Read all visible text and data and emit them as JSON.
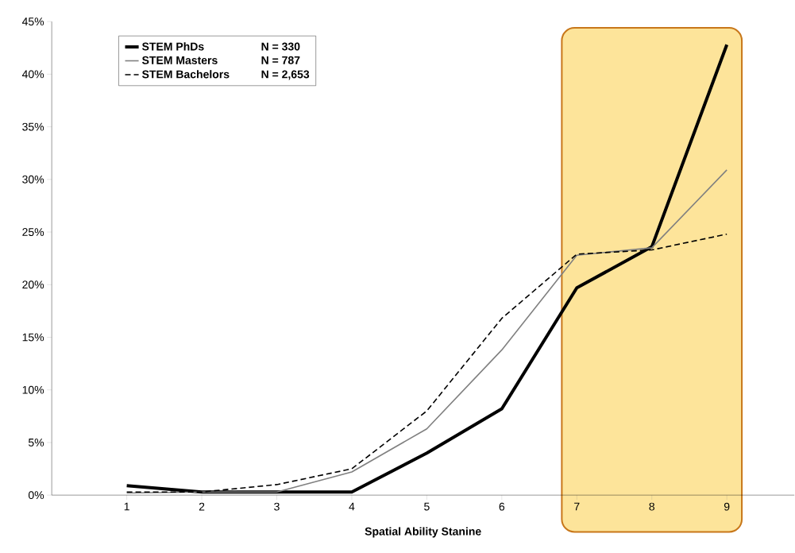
{
  "chart_data": {
    "type": "line",
    "xlabel": "Spatial Ability Stanine",
    "x": [
      1,
      2,
      3,
      4,
      5,
      6,
      7,
      8,
      9
    ],
    "xlim": [
      0,
      9.9
    ],
    "xticks": [
      1,
      2,
      3,
      4,
      5,
      6,
      7,
      8,
      9
    ],
    "ylim": [
      0,
      45
    ],
    "yticks": [
      {
        "value": 0,
        "label": "0%"
      },
      {
        "value": 5,
        "label": "5%"
      },
      {
        "value": 10,
        "label": "10%"
      },
      {
        "value": 15,
        "label": "15%"
      },
      {
        "value": 20,
        "label": "20%"
      },
      {
        "value": 25,
        "label": "25%"
      },
      {
        "value": 30,
        "label": "30%"
      },
      {
        "value": 35,
        "label": "35%"
      },
      {
        "value": 40,
        "label": "40%"
      },
      {
        "value": 45,
        "label": "45%"
      }
    ],
    "series": [
      {
        "name": "STEM PhDs",
        "color": "#000000",
        "line_style": "solid",
        "values": [
          0.9,
          0.3,
          0.3,
          0.3,
          4.0,
          8.2,
          19.7,
          23.6,
          42.8
        ]
      },
      {
        "name": "STEM Masters",
        "color": "#808080",
        "line_style": "solid",
        "values": [
          0.2,
          0.3,
          0.3,
          2.2,
          6.3,
          13.8,
          22.8,
          23.5,
          30.9
        ]
      },
      {
        "name": "STEM Bachelors",
        "color": "#000000",
        "line_style": "dashed",
        "values": [
          0.3,
          0.3,
          1.0,
          2.5,
          8.0,
          16.8,
          22.9,
          23.3,
          24.8
        ]
      }
    ],
    "annotations": [
      "N = 330",
      "N = 787",
      "N = 2,653"
    ],
    "bands": [
      {
        "axis": "x",
        "from": 6.8,
        "to": 9.2,
        "color": "#fde49a"
      }
    ],
    "grid": false,
    "legend": "top left",
    "marker": "none"
  }
}
